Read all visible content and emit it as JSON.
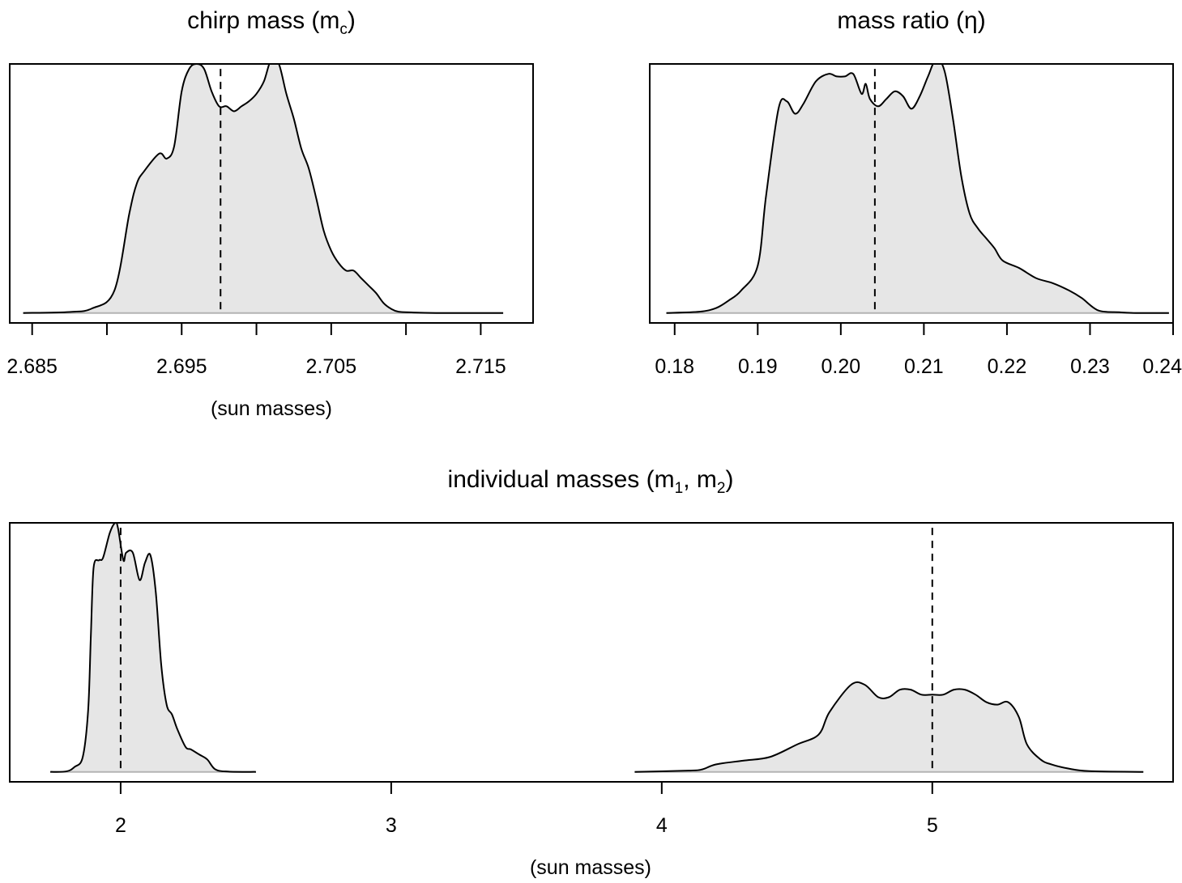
{
  "colors": {
    "density_fill": "#e6e6e6",
    "density_line": "#000000",
    "baseline": "#b3b3b3",
    "frame": "#000000",
    "reference_line": "#000000"
  },
  "chart_data": [
    {
      "type": "area",
      "title": "chirp mass (m",
      "title_sub": "c",
      "title_end": ")",
      "xlabel": "(sun masses)",
      "ylabel": "",
      "xlim": [
        2.6835,
        2.7185
      ],
      "ylim": [
        -0.04,
        1.0
      ],
      "xticks": [
        2.685,
        2.69,
        2.695,
        2.7,
        2.705,
        2.71,
        2.715
      ],
      "xtick_labels": [
        "2.685",
        "",
        "2.695",
        "",
        "2.705",
        "",
        "2.715"
      ],
      "reference_lines": [
        2.6976
      ],
      "grid": false,
      "legend": "none",
      "series": [
        {
          "x": [
            2.6844,
            2.6875,
            2.689,
            2.6905,
            2.6915,
            2.692,
            2.6925,
            2.6935,
            2.694,
            2.6945,
            2.695,
            2.6955,
            2.696,
            2.6965,
            2.697,
            2.6975,
            2.698,
            2.6985,
            2.699,
            2.6995,
            2.7,
            2.7005,
            2.701,
            2.7015,
            2.702,
            2.7025,
            2.703,
            2.7035,
            2.704,
            2.7045,
            2.705,
            2.7055,
            2.706,
            2.7065,
            2.707,
            2.7075,
            2.708,
            2.7085,
            2.709,
            2.7095,
            2.7105,
            2.712,
            2.7135,
            2.7165
          ],
          "y": [
            0.0,
            0.004,
            0.018,
            0.09,
            0.4,
            0.52,
            0.57,
            0.64,
            0.62,
            0.67,
            0.89,
            0.98,
            1.0,
            0.98,
            0.89,
            0.83,
            0.83,
            0.81,
            0.83,
            0.85,
            0.88,
            0.93,
            1.02,
            1.0,
            0.88,
            0.78,
            0.66,
            0.58,
            0.46,
            0.33,
            0.25,
            0.2,
            0.17,
            0.17,
            0.14,
            0.11,
            0.08,
            0.04,
            0.017,
            0.005,
            0.002,
            0.0,
            0.0,
            0.0
          ]
        }
      ]
    },
    {
      "type": "area",
      "title": "mass ratio (η)",
      "xlabel": "",
      "ylabel": "",
      "xlim": [
        0.177,
        0.24
      ],
      "ylim": [
        -0.04,
        1.0
      ],
      "xticks": [
        0.18,
        0.19,
        0.2,
        0.21,
        0.22,
        0.23,
        0.24
      ],
      "xtick_labels": [
        "0.18",
        "0.19",
        "0.20",
        "0.21",
        "0.22",
        "0.23",
        "0.24"
      ],
      "reference_lines": [
        0.2041
      ],
      "grid": false,
      "legend": "none",
      "series": [
        {
          "x": [
            0.179,
            0.183,
            0.185,
            0.1865,
            0.188,
            0.19,
            0.191,
            0.1925,
            0.1935,
            0.1945,
            0.1955,
            0.197,
            0.1985,
            0.1995,
            0.2005,
            0.2015,
            0.2025,
            0.203,
            0.2035,
            0.2045,
            0.2055,
            0.2065,
            0.2075,
            0.2085,
            0.2095,
            0.2105,
            0.2115,
            0.2125,
            0.2135,
            0.2145,
            0.2155,
            0.2165,
            0.2175,
            0.2185,
            0.2195,
            0.2215,
            0.2235,
            0.2255,
            0.2275,
            0.229,
            0.231,
            0.2335,
            0.2355,
            0.2395
          ],
          "y": [
            0.0,
            0.005,
            0.02,
            0.05,
            0.09,
            0.19,
            0.47,
            0.82,
            0.85,
            0.8,
            0.84,
            0.93,
            0.96,
            0.95,
            0.95,
            0.96,
            0.88,
            0.92,
            0.86,
            0.83,
            0.86,
            0.89,
            0.87,
            0.82,
            0.87,
            0.95,
            1.02,
            0.97,
            0.78,
            0.55,
            0.4,
            0.34,
            0.3,
            0.26,
            0.21,
            0.18,
            0.14,
            0.12,
            0.09,
            0.06,
            0.01,
            0.003,
            0.0,
            0.0
          ]
        }
      ]
    },
    {
      "type": "area",
      "title": "individual masses (m",
      "title_sub1": "1",
      "title_mid": ", m",
      "title_sub2": "2",
      "title_end": ")",
      "xlabel": "(sun masses)",
      "ylabel": "",
      "xlim": [
        1.59,
        5.89
      ],
      "ylim": [
        -0.04,
        1.0
      ],
      "xticks": [
        2,
        3,
        4,
        5
      ],
      "xtick_labels": [
        "2",
        "3",
        "4",
        "5"
      ],
      "reference_lines": [
        2.0,
        5.0
      ],
      "grid": false,
      "legend": "none",
      "series": [
        {
          "name": "m2",
          "x": [
            1.74,
            1.8,
            1.83,
            1.86,
            1.88,
            1.89,
            1.9,
            1.92,
            1.935,
            1.96,
            1.98,
            1.99,
            2.01,
            2.02,
            2.045,
            2.07,
            2.09,
            2.11,
            2.13,
            2.15,
            2.17,
            2.19,
            2.21,
            2.24,
            2.26,
            2.29,
            2.32,
            2.35,
            2.4,
            2.5
          ],
          "y": [
            0.0,
            0.002,
            0.02,
            0.06,
            0.25,
            0.55,
            0.82,
            0.85,
            0.86,
            0.96,
            1.0,
            0.98,
            0.85,
            0.88,
            0.88,
            0.77,
            0.84,
            0.87,
            0.72,
            0.43,
            0.27,
            0.23,
            0.17,
            0.1,
            0.09,
            0.07,
            0.05,
            0.01,
            0.001,
            0.0
          ]
        },
        {
          "name": "m1",
          "x": [
            3.9,
            4.1,
            4.15,
            4.2,
            4.3,
            4.4,
            4.5,
            4.58,
            4.62,
            4.7,
            4.75,
            4.8,
            4.84,
            4.88,
            4.92,
            4.96,
            5.0,
            5.04,
            5.08,
            5.12,
            5.16,
            5.2,
            5.24,
            5.28,
            5.32,
            5.35,
            5.4,
            5.44,
            5.5,
            5.58,
            5.78
          ],
          "y": [
            0.0,
            0.005,
            0.01,
            0.03,
            0.045,
            0.06,
            0.11,
            0.15,
            0.24,
            0.35,
            0.35,
            0.3,
            0.3,
            0.33,
            0.33,
            0.31,
            0.31,
            0.31,
            0.33,
            0.33,
            0.31,
            0.28,
            0.27,
            0.28,
            0.22,
            0.11,
            0.05,
            0.03,
            0.014,
            0.003,
            0.0
          ]
        }
      ]
    }
  ]
}
